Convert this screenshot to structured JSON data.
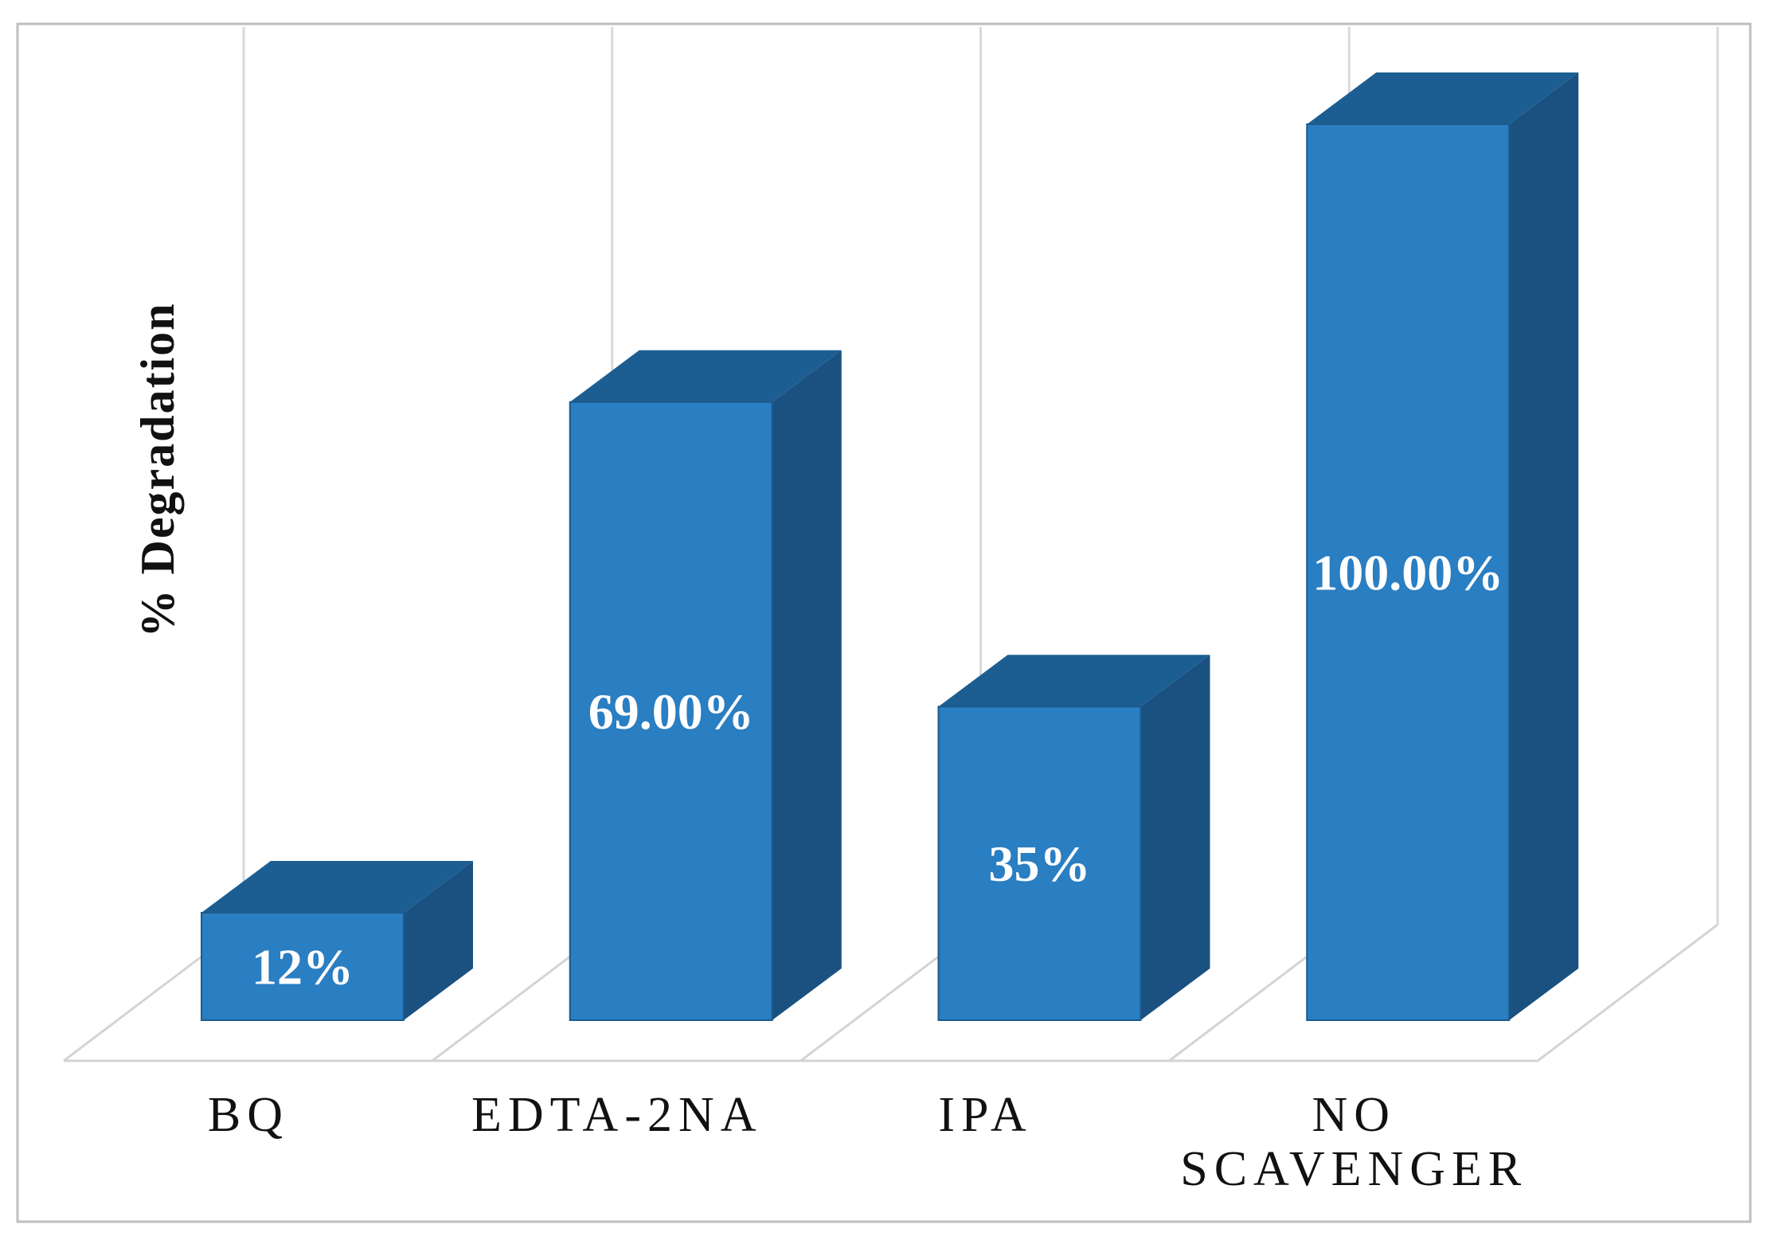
{
  "chart_data": {
    "type": "bar",
    "style": "3d-clustered-column",
    "title": "",
    "xlabel": "",
    "ylabel": "% Degradation",
    "categories": [
      "BQ",
      "EDTA-2NA",
      "IPA",
      "NO SCAVENGER"
    ],
    "values": [
      12,
      69,
      35,
      100
    ],
    "data_labels": [
      "12%",
      "69.00%",
      "35%",
      "100.00%"
    ],
    "ylim": [
      0,
      100
    ],
    "legend": "none",
    "grid": "vertical category separators on back wall and floor, no horizontal gridlines, no value axis ticks",
    "colors": {
      "bar_front": "#2A7EC2",
      "bar_top": "#1C5E92",
      "bar_side": "#1A5181",
      "bar_edge": "#1D5A8A",
      "gridline": "#D9D9D9",
      "floor_line": "#D4D4D4",
      "figure_border": "#BFBFBF",
      "text": "#111111",
      "data_label_text": "#FFFFFF",
      "background": "#FFFFFF"
    }
  }
}
